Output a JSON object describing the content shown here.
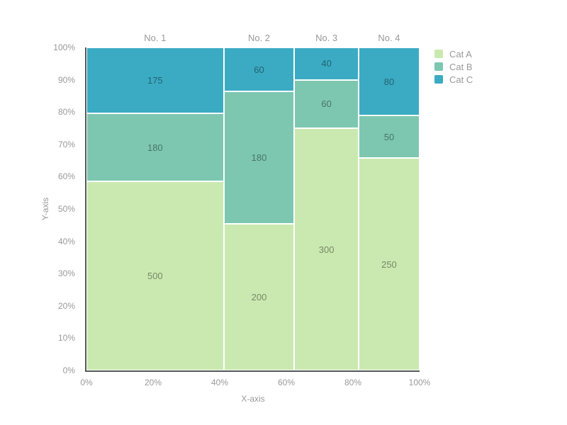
{
  "chart_data": {
    "type": "mosaic",
    "title": "",
    "xlabel": "X-axis",
    "ylabel": "Y-axis",
    "columns": [
      "No. 1",
      "No. 2",
      "No. 3",
      "No. 4"
    ],
    "series": [
      {
        "name": "Cat A",
        "color": "#cae9b0",
        "values": [
          500,
          200,
          300,
          250
        ]
      },
      {
        "name": "Cat B",
        "color": "#7dc7b1",
        "values": [
          180,
          180,
          60,
          50
        ]
      },
      {
        "name": "Cat C",
        "color": "#3babc3",
        "values": [
          175,
          60,
          40,
          80
        ]
      }
    ],
    "stack_order_bottom_to_top": [
      "Cat A",
      "Cat B",
      "Cat C"
    ],
    "x_ticks": [
      "0%",
      "20%",
      "40%",
      "60%",
      "80%",
      "100%"
    ],
    "y_ticks": [
      "0%",
      "10%",
      "20%",
      "30%",
      "40%",
      "50%",
      "60%",
      "70%",
      "80%",
      "90%",
      "100%"
    ],
    "xlim": [
      0,
      100
    ],
    "ylim": [
      0,
      100
    ],
    "grid": false,
    "legend_position": "top-right",
    "legend": [
      "Cat A",
      "Cat B",
      "Cat C"
    ]
  },
  "styles": {
    "background": "#ffffff",
    "axis_text_color": "#999999",
    "axis_line_color": "#55595c",
    "segment_label_color": "rgba(0,0,0,0.42)",
    "segment_border_color": "#ffffff"
  }
}
